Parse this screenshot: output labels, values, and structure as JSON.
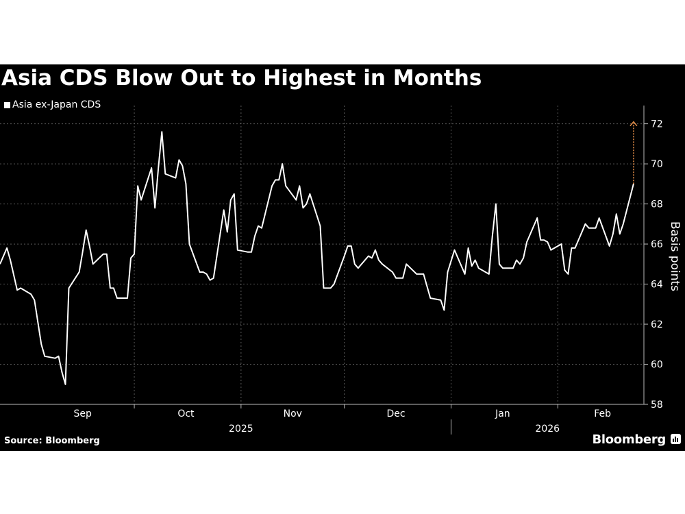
{
  "header": {
    "title": "Asia CDS Blow Out to Highest in Months"
  },
  "footer": {
    "source": "Source: Bloomberg",
    "brand": "Bloomberg"
  },
  "colors": {
    "background": "#000000",
    "line": "#ffffff",
    "grid": "#5a5a5a",
    "annotation_arrow": "#e8914a"
  },
  "icons": {
    "brand_logo": "bloomberg-logo-icon",
    "annotation": "arrow-up-icon"
  },
  "chart_data": {
    "type": "line",
    "title": "Asia CDS Blow Out to Highest in Months",
    "xlabel": "",
    "ylabel": "Basis points",
    "ylim": [
      58,
      72.5
    ],
    "yticks": [
      58,
      60,
      62,
      64,
      66,
      68,
      70,
      72
    ],
    "grid": true,
    "legend_position": "top-left",
    "y_axis_side": "right",
    "month_labels": [
      "Sep",
      "Oct",
      "Nov",
      "Dec",
      "Jan",
      "Feb"
    ],
    "year_labels": [
      "2025",
      "2026"
    ],
    "x_range": [
      "2025-08-23",
      "2026-02-26"
    ],
    "month_label_dates": [
      "2025-09-16",
      "2025-10-16",
      "2025-11-16",
      "2025-12-16",
      "2026-01-16",
      "2026-02-14"
    ],
    "month_boundaries": [
      "2025-10-01",
      "2025-11-01",
      "2025-12-01",
      "2026-01-01",
      "2026-02-01"
    ],
    "year_boundary": "2026-01-01",
    "year_label_dates": [
      "2025-11-01",
      "2026-01-29"
    ],
    "series": [
      {
        "name": "Asia ex-Japan CDS",
        "points": [
          [
            "2025-08-23",
            65.0
          ],
          [
            "2025-08-25",
            65.8
          ],
          [
            "2025-08-26",
            65.2
          ],
          [
            "2025-08-28",
            63.7
          ],
          [
            "2025-08-29",
            63.8
          ],
          [
            "2025-09-01",
            63.5
          ],
          [
            "2025-09-02",
            63.2
          ],
          [
            "2025-09-03",
            62.1
          ],
          [
            "2025-09-04",
            61.0
          ],
          [
            "2025-09-05",
            60.4
          ],
          [
            "2025-09-08",
            60.3
          ],
          [
            "2025-09-09",
            60.4
          ],
          [
            "2025-09-10",
            59.6
          ],
          [
            "2025-09-11",
            59.0
          ],
          [
            "2025-09-12",
            63.8
          ],
          [
            "2025-09-15",
            64.6
          ],
          [
            "2025-09-16",
            65.6
          ],
          [
            "2025-09-17",
            66.7
          ],
          [
            "2025-09-18",
            65.9
          ],
          [
            "2025-09-19",
            65.0
          ],
          [
            "2025-09-22",
            65.5
          ],
          [
            "2025-09-23",
            65.5
          ],
          [
            "2025-09-24",
            63.8
          ],
          [
            "2025-09-25",
            63.8
          ],
          [
            "2025-09-26",
            63.3
          ],
          [
            "2025-09-29",
            63.3
          ],
          [
            "2025-09-30",
            65.3
          ],
          [
            "2025-10-01",
            65.5
          ],
          [
            "2025-10-02",
            68.9
          ],
          [
            "2025-10-03",
            68.2
          ],
          [
            "2025-10-06",
            69.8
          ],
          [
            "2025-10-07",
            67.8
          ],
          [
            "2025-10-08",
            69.8
          ],
          [
            "2025-10-09",
            71.6
          ],
          [
            "2025-10-10",
            69.5
          ],
          [
            "2025-10-13",
            69.3
          ],
          [
            "2025-10-14",
            70.2
          ],
          [
            "2025-10-15",
            69.9
          ],
          [
            "2025-10-16",
            69.0
          ],
          [
            "2025-10-17",
            66.0
          ],
          [
            "2025-10-20",
            64.6
          ],
          [
            "2025-10-21",
            64.6
          ],
          [
            "2025-10-22",
            64.5
          ],
          [
            "2025-10-23",
            64.2
          ],
          [
            "2025-10-24",
            64.3
          ],
          [
            "2025-10-27",
            67.7
          ],
          [
            "2025-10-28",
            66.6
          ],
          [
            "2025-10-29",
            68.2
          ],
          [
            "2025-10-30",
            68.5
          ],
          [
            "2025-10-31",
            65.7
          ],
          [
            "2025-11-03",
            65.6
          ],
          [
            "2025-11-04",
            65.6
          ],
          [
            "2025-11-05",
            66.4
          ],
          [
            "2025-11-06",
            66.9
          ],
          [
            "2025-11-07",
            66.8
          ],
          [
            "2025-11-10",
            68.9
          ],
          [
            "2025-11-11",
            69.2
          ],
          [
            "2025-11-12",
            69.2
          ],
          [
            "2025-11-13",
            70.0
          ],
          [
            "2025-11-14",
            68.9
          ],
          [
            "2025-11-17",
            68.2
          ],
          [
            "2025-11-18",
            68.9
          ],
          [
            "2025-11-19",
            67.8
          ],
          [
            "2025-11-20",
            68.0
          ],
          [
            "2025-11-21",
            68.5
          ],
          [
            "2025-11-24",
            66.9
          ],
          [
            "2025-11-25",
            63.8
          ],
          [
            "2025-11-26",
            63.8
          ],
          [
            "2025-11-27",
            63.8
          ],
          [
            "2025-11-28",
            64.0
          ],
          [
            "2025-12-01",
            65.4
          ],
          [
            "2025-12-02",
            65.9
          ],
          [
            "2025-12-03",
            65.9
          ],
          [
            "2025-12-04",
            65.0
          ],
          [
            "2025-12-05",
            64.8
          ],
          [
            "2025-12-08",
            65.4
          ],
          [
            "2025-12-09",
            65.3
          ],
          [
            "2025-12-10",
            65.7
          ],
          [
            "2025-12-11",
            65.2
          ],
          [
            "2025-12-12",
            65.0
          ],
          [
            "2025-12-15",
            64.6
          ],
          [
            "2025-12-16",
            64.3
          ],
          [
            "2025-12-17",
            64.3
          ],
          [
            "2025-12-18",
            64.3
          ],
          [
            "2025-12-19",
            65.0
          ],
          [
            "2025-12-22",
            64.5
          ],
          [
            "2025-12-23",
            64.5
          ],
          [
            "2025-12-24",
            64.5
          ],
          [
            "2025-12-26",
            63.3
          ],
          [
            "2025-12-29",
            63.2
          ],
          [
            "2025-12-30",
            62.7
          ],
          [
            "2025-12-31",
            64.6
          ],
          [
            "2026-01-02",
            65.7
          ],
          [
            "2026-01-05",
            64.5
          ],
          [
            "2026-01-06",
            65.8
          ],
          [
            "2026-01-07",
            64.9
          ],
          [
            "2026-01-08",
            65.2
          ],
          [
            "2026-01-09",
            64.8
          ],
          [
            "2026-01-12",
            64.5
          ],
          [
            "2026-01-13",
            66.4
          ],
          [
            "2026-01-14",
            68.0
          ],
          [
            "2026-01-15",
            65.0
          ],
          [
            "2026-01-16",
            64.8
          ],
          [
            "2026-01-19",
            64.8
          ],
          [
            "2026-01-20",
            65.2
          ],
          [
            "2026-01-21",
            65.0
          ],
          [
            "2026-01-22",
            65.3
          ],
          [
            "2026-01-23",
            66.1
          ],
          [
            "2026-01-26",
            67.3
          ],
          [
            "2026-01-27",
            66.2
          ],
          [
            "2026-01-28",
            66.2
          ],
          [
            "2026-01-29",
            66.1
          ],
          [
            "2026-01-30",
            65.7
          ],
          [
            "2026-02-02",
            66.0
          ],
          [
            "2026-02-03",
            64.7
          ],
          [
            "2026-02-04",
            64.5
          ],
          [
            "2026-02-05",
            65.8
          ],
          [
            "2026-02-06",
            65.8
          ],
          [
            "2026-02-09",
            67.0
          ],
          [
            "2026-02-10",
            66.8
          ],
          [
            "2026-02-11",
            66.8
          ],
          [
            "2026-02-12",
            66.8
          ],
          [
            "2026-02-13",
            67.3
          ],
          [
            "2026-02-16",
            65.9
          ],
          [
            "2026-02-17",
            66.5
          ],
          [
            "2026-02-18",
            67.5
          ],
          [
            "2026-02-19",
            66.5
          ],
          [
            "2026-02-20",
            67.0
          ],
          [
            "2026-02-23",
            69.0
          ]
        ]
      }
    ],
    "annotations": [
      {
        "type": "arrow",
        "x": "2026-02-23",
        "from": 69.0,
        "to": 72.1
      }
    ]
  }
}
